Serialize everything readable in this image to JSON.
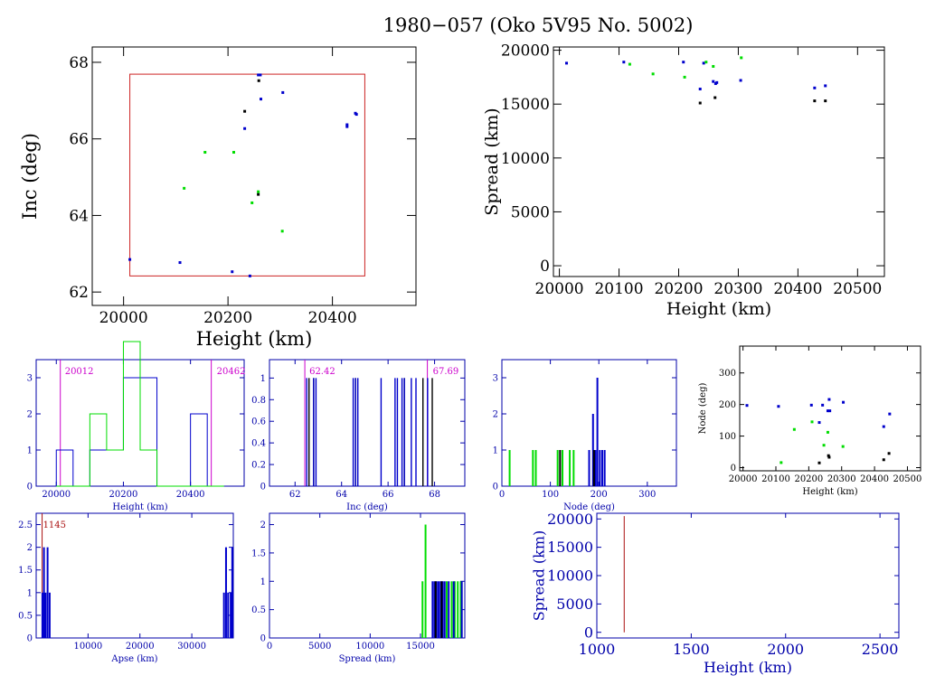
{
  "title": "1980−057 (Oko 5V95 No. 5002)",
  "colors": {
    "axis": "#000000",
    "black_points": "#000000",
    "blue_points": "#0000cc",
    "green_points": "#00dd00",
    "box": "#cc2222",
    "magenta": "#cc00cc",
    "dark_red": "#aa1111",
    "navy_axis": "#0000aa"
  },
  "chart_data": [
    {
      "id": "inc-vs-height",
      "type": "scatter",
      "title": "",
      "xlabel": "Height (km)",
      "ylabel": "Inc (deg)",
      "xlim": [
        19940,
        20560
      ],
      "ylim": [
        61.65,
        68.4
      ],
      "xticks": [
        20000,
        20200,
        20400
      ],
      "yticks": [
        62,
        64,
        66,
        68
      ],
      "box": {
        "x": [
          20012,
          20462
        ],
        "y": [
          62.42,
          67.69
        ]
      },
      "series": [
        {
          "color": "black",
          "points": [
            [
              20232,
              66.72
            ],
            [
              20258,
              64.55
            ],
            [
              20259,
              67.52
            ]
          ]
        },
        {
          "color": "blue",
          "points": [
            [
              20012,
              62.85
            ],
            [
              20108,
              62.77
            ],
            [
              20208,
              62.53
            ],
            [
              20232,
              66.27
            ],
            [
              20242,
              62.42
            ],
            [
              20258,
              67.67
            ],
            [
              20262,
              67.67
            ],
            [
              20263,
              67.04
            ],
            [
              20305,
              67.21
            ],
            [
              20428,
              66.37
            ],
            [
              20428,
              66.32
            ],
            [
              20444,
              66.67
            ],
            [
              20446,
              66.64
            ]
          ]
        },
        {
          "color": "green",
          "points": [
            [
              20116,
              64.71
            ],
            [
              20156,
              65.65
            ],
            [
              20211,
              65.65
            ],
            [
              20246,
              64.33
            ],
            [
              20258,
              64.62
            ],
            [
              20304,
              63.59
            ]
          ]
        }
      ]
    },
    {
      "id": "spread-vs-height",
      "type": "scatter",
      "title": "",
      "xlabel": "Height (km)",
      "ylabel": "Spread (km)",
      "xlim": [
        19990,
        20545
      ],
      "ylim": [
        -1000,
        20300
      ],
      "xticks": [
        20000,
        20100,
        20200,
        20300,
        20400,
        20500
      ],
      "yticks": [
        0,
        5000,
        10000,
        15000,
        20000
      ],
      "series": [
        {
          "color": "black",
          "points": [
            [
              20236,
              15100
            ],
            [
              20261,
              15600
            ],
            [
              20428,
              15300
            ],
            [
              20446,
              15300
            ]
          ]
        },
        {
          "color": "blue",
          "points": [
            [
              20012,
              18800
            ],
            [
              20108,
              18900
            ],
            [
              20208,
              18900
            ],
            [
              20236,
              16400
            ],
            [
              20242,
              18800
            ],
            [
              20258,
              17100
            ],
            [
              20262,
              16900
            ],
            [
              20264,
              17000
            ],
            [
              20304,
              17200
            ],
            [
              20428,
              16500
            ],
            [
              20446,
              16700
            ]
          ]
        },
        {
          "color": "green",
          "points": [
            [
              20118,
              18700
            ],
            [
              20157,
              17800
            ],
            [
              20210,
              17500
            ],
            [
              20246,
              18900
            ],
            [
              20258,
              18500
            ],
            [
              20305,
              19300
            ]
          ]
        }
      ]
    },
    {
      "id": "height-histogram",
      "type": "bar",
      "title": "",
      "xlabel": "Height (km)",
      "ylabel": "",
      "xlim": [
        19940,
        20560
      ],
      "ylim": [
        0,
        3.5
      ],
      "xticks": [
        20000,
        20200,
        20400
      ],
      "yticks": [
        0,
        1,
        2,
        3
      ],
      "markers": [
        {
          "x": 20012,
          "label": "20012"
        },
        {
          "x": 20462,
          "label": "20462"
        }
      ],
      "series": [
        {
          "color": "blue",
          "bin_edges": [
            20000,
            20050,
            20100,
            20150,
            20200,
            20250,
            20300,
            20350,
            20400,
            20450,
            20500
          ],
          "values": [
            1,
            0,
            1,
            1,
            3,
            3,
            0,
            0,
            2,
            0
          ]
        },
        {
          "color": "green",
          "bin_edges": [
            20000,
            20050,
            20100,
            20150,
            20200,
            20250,
            20300,
            20350,
            20400,
            20450,
            20500
          ],
          "values": [
            0,
            0,
            2,
            1,
            4,
            1,
            0,
            0,
            0,
            0
          ]
        }
      ]
    },
    {
      "id": "inc-histogram",
      "type": "bar",
      "title": "",
      "xlabel": "Inc (deg)",
      "ylabel": "",
      "xlim": [
        60.9,
        69.3
      ],
      "ylim": [
        0,
        1.17
      ],
      "xticks": [
        62,
        64,
        66,
        68
      ],
      "yticks": [
        0,
        0.2,
        0.4,
        0.6,
        0.8,
        1
      ],
      "markers": [
        {
          "x": 62.42,
          "label": "62.42"
        },
        {
          "x": 67.69,
          "label": "67.69"
        }
      ],
      "series": [
        {
          "color": "black",
          "lines": [
            62.6,
            62.8,
            64.6,
            66.7,
            67.5,
            67.9
          ]
        },
        {
          "color": "blue",
          "lines": [
            62.5,
            62.8,
            62.9,
            64.5,
            64.6,
            64.7,
            65.7,
            66.3,
            66.4,
            66.6,
            66.7,
            67.0,
            67.2,
            67.7
          ]
        }
      ]
    },
    {
      "id": "node-histogram",
      "type": "bar",
      "title": "",
      "xlabel": "Node (deg)",
      "ylabel": "",
      "xlim": [
        0,
        360
      ],
      "ylim": [
        0,
        3.5
      ],
      "xticks": [
        0,
        100,
        200,
        300
      ],
      "yticks": [
        0,
        1,
        2,
        3
      ],
      "series": [
        {
          "color": "green",
          "bars": [
            [
              16,
              1
            ],
            [
              64,
              1
            ],
            [
              70,
              1
            ],
            [
              115,
              1
            ],
            [
              125,
              1
            ],
            [
              140,
              1
            ],
            [
              148,
              1
            ]
          ]
        },
        {
          "color": "blue",
          "bars": [
            [
              180,
              1
            ],
            [
              188,
              2
            ],
            [
              193,
              1
            ],
            [
              197,
              3
            ],
            [
              202,
              1
            ],
            [
              207,
              1
            ],
            [
              212,
              1
            ]
          ]
        },
        {
          "color": "black",
          "bars": [
            [
              120,
              1
            ],
            [
              190,
              1
            ]
          ]
        }
      ]
    },
    {
      "id": "node-vs-height",
      "type": "scatter",
      "title": "",
      "xlabel": "Height (km)",
      "ylabel": "Node (deg)",
      "xlim": [
        19990,
        20540
      ],
      "ylim": [
        -10,
        385
      ],
      "xticks": [
        20000,
        20100,
        20200,
        20300,
        20400,
        20500
      ],
      "yticks": [
        0,
        100,
        200,
        300
      ],
      "series": [
        {
          "color": "black",
          "points": [
            [
              20232,
              15
            ],
            [
              20260,
              38
            ],
            [
              20262,
              33
            ],
            [
              20428,
              25
            ],
            [
              20444,
              45
            ]
          ]
        },
        {
          "color": "blue",
          "points": [
            [
              20012,
              197
            ],
            [
              20108,
              194
            ],
            [
              20208,
              198
            ],
            [
              20232,
              143
            ],
            [
              20242,
              198
            ],
            [
              20258,
              180
            ],
            [
              20262,
              216
            ],
            [
              20264,
              180
            ],
            [
              20305,
              207
            ],
            [
              20428,
              130
            ],
            [
              20446,
              170
            ]
          ]
        },
        {
          "color": "green",
          "points": [
            [
              20116,
              16
            ],
            [
              20156,
              121
            ],
            [
              20210,
              145
            ],
            [
              20246,
              71
            ],
            [
              20258,
              112
            ],
            [
              20304,
              67
            ]
          ]
        }
      ]
    },
    {
      "id": "apse-histogram",
      "type": "bar",
      "title": "",
      "xlabel": "Apse (km)",
      "ylabel": "",
      "xlim": [
        0,
        38000
      ],
      "ylim": [
        0,
        2.75
      ],
      "xticks": [
        10000,
        20000,
        30000
      ],
      "yticks": [
        0,
        0.5,
        1,
        1.5,
        2,
        2.5
      ],
      "markers": [
        {
          "x": 1145,
          "label": "1145"
        }
      ],
      "series": [
        {
          "color": "blue",
          "bars": [
            [
              1200,
              1
            ],
            [
              1500,
              2
            ],
            [
              1800,
              1
            ],
            [
              2200,
              2
            ],
            [
              2600,
              1
            ],
            [
              36200,
              1
            ],
            [
              36600,
              2
            ],
            [
              37000,
              1
            ],
            [
              37500,
              1
            ],
            [
              37800,
              2
            ]
          ]
        }
      ]
    },
    {
      "id": "spread-histogram",
      "type": "bar",
      "title": "",
      "xlabel": "Spread (km)",
      "ylabel": "",
      "xlim": [
        0,
        19400
      ],
      "ylim": [
        0,
        2.2
      ],
      "xticks": [
        0,
        5000,
        10000,
        15000
      ],
      "yticks": [
        0,
        0.5,
        1,
        1.5,
        2
      ],
      "series": [
        {
          "color": "green",
          "bars": [
            [
              15200,
              1
            ],
            [
              15500,
              2
            ],
            [
              17600,
              1
            ],
            [
              18100,
              1
            ],
            [
              18400,
              1
            ],
            [
              18700,
              1
            ],
            [
              19000,
              1
            ]
          ]
        },
        {
          "color": "blue",
          "bars": [
            [
              16200,
              1
            ],
            [
              16400,
              1
            ],
            [
              16600,
              1
            ],
            [
              16800,
              1
            ],
            [
              17000,
              1
            ],
            [
              17200,
              1
            ],
            [
              17400,
              1
            ],
            [
              17800,
              1
            ],
            [
              18300,
              1
            ],
            [
              19100,
              1
            ]
          ]
        },
        {
          "color": "black",
          "bars": [
            [
              16500,
              1
            ],
            [
              17100,
              1
            ]
          ]
        }
      ]
    },
    {
      "id": "spread-vs-height-low",
      "type": "line",
      "title": "",
      "xlabel": "Height (km)",
      "ylabel": "Spread (km)",
      "xlim": [
        1000,
        2600
      ],
      "ylim": [
        -1000,
        21000
      ],
      "xticks": [
        1000,
        1500,
        2000,
        2500
      ],
      "yticks": [
        0,
        5000,
        10000,
        15000,
        20000
      ],
      "series": [
        {
          "color": "dark_red",
          "points": [
            [
              1145,
              0
            ],
            [
              1145,
              20500
            ]
          ]
        }
      ]
    }
  ]
}
